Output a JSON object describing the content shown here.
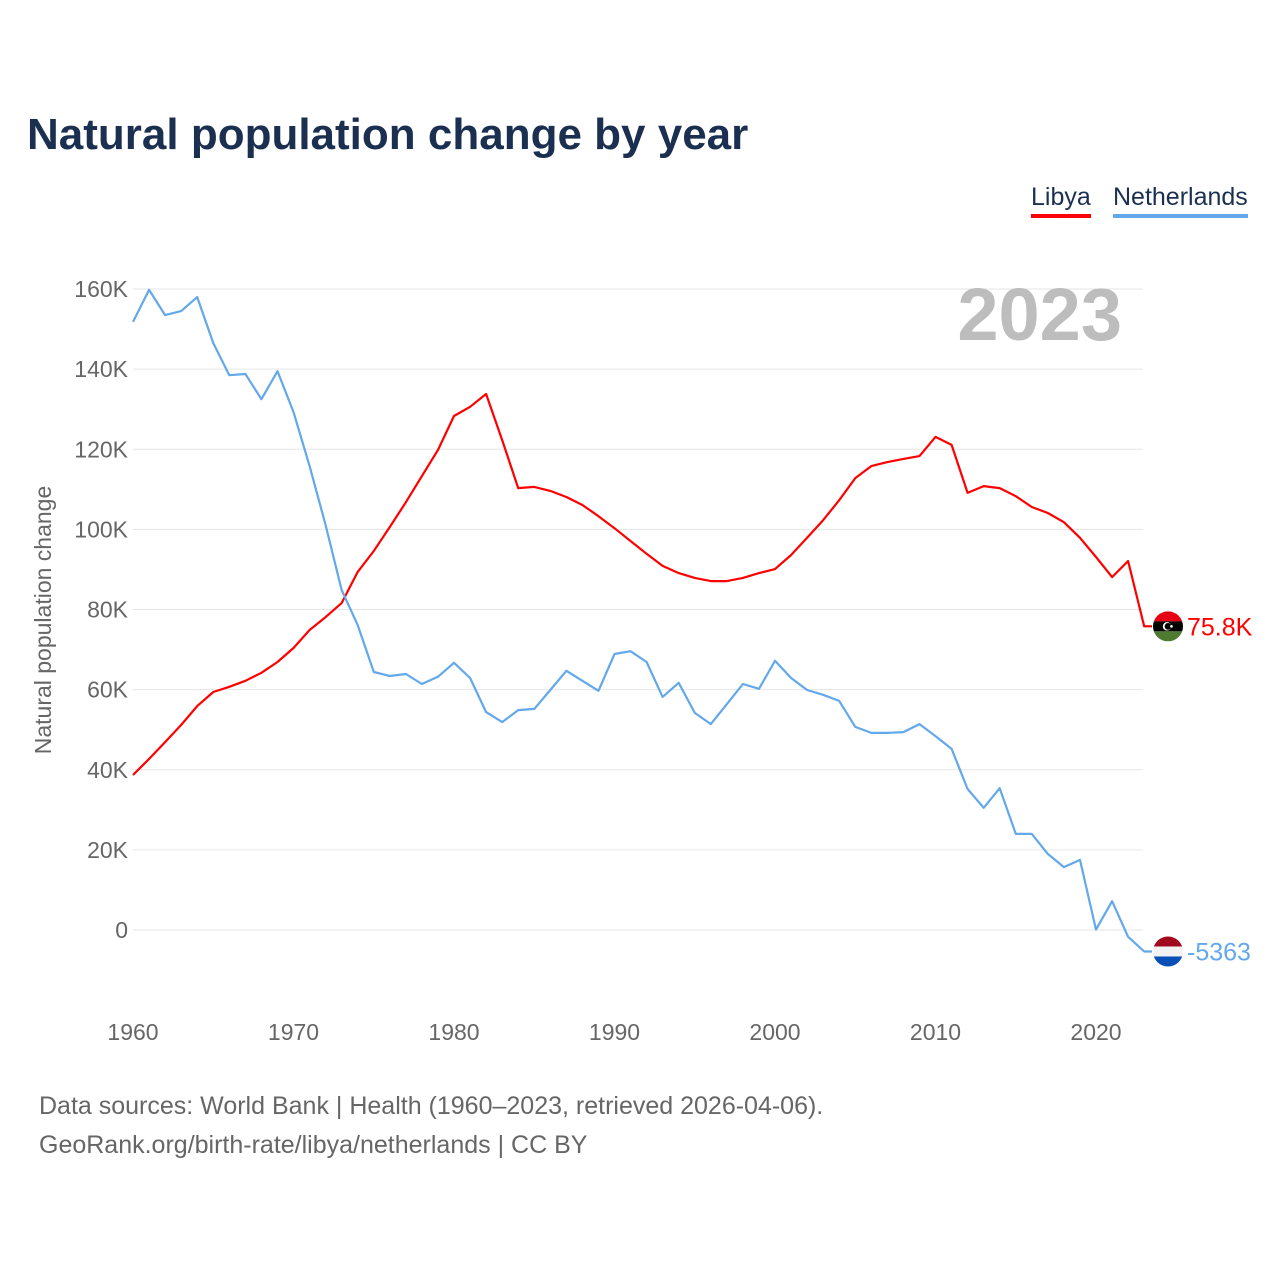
{
  "chart_data": {
    "type": "line",
    "title": "Natural population change by year",
    "ylabel": "Natural population change",
    "xlabel": "",
    "xlim": [
      1960,
      2023
    ],
    "ylim": [
      -15000,
      170000
    ],
    "grid": true,
    "legend_position": "top-right",
    "year_watermark": "2023",
    "x_ticks": [
      "1960",
      "1970",
      "1980",
      "1990",
      "2000",
      "2010",
      "2020"
    ],
    "y_ticks": [
      {
        "v": 0,
        "label": "0"
      },
      {
        "v": 20000,
        "label": "20K"
      },
      {
        "v": 40000,
        "label": "40K"
      },
      {
        "v": 60000,
        "label": "60K"
      },
      {
        "v": 80000,
        "label": "80K"
      },
      {
        "v": 100000,
        "label": "100K"
      },
      {
        "v": 120000,
        "label": "120K"
      },
      {
        "v": 140000,
        "label": "140K"
      },
      {
        "v": 160000,
        "label": "160K"
      }
    ],
    "x_start": 1960,
    "series": [
      {
        "name": "Libya",
        "color": "#ff0000",
        "end_label": "75.8K",
        "flag": "libya-flag",
        "values": [
          38.7,
          42.7,
          46.9,
          51.2,
          55.9,
          59.4,
          60.7,
          62.2,
          64.2,
          66.9,
          70.4,
          74.9,
          78.1,
          81.6,
          89.4,
          94.6,
          100.6,
          106.8,
          113.3,
          119.8,
          128.3,
          130.6,
          133.8,
          122.3,
          110.3,
          110.6,
          109.6,
          108.1,
          106.1,
          103.3,
          100.3,
          97.1,
          93.9,
          90.9,
          89.1,
          87.9,
          87.1,
          87.1,
          87.9,
          89.1,
          90.1,
          93.6,
          97.9,
          102.3,
          107.3,
          112.8,
          115.8,
          116.8,
          117.6,
          118.3,
          123.1,
          121.1,
          109.1,
          110.8,
          110.3,
          108.3,
          105.6,
          104.1,
          101.8,
          97.9,
          93.1,
          88.1,
          92.1,
          75.8
        ]
      },
      {
        "name": "Netherlands",
        "color": "#62a8ea",
        "end_label": "-5363",
        "flag": "netherlands-flag",
        "values": [
          151.8,
          159.8,
          153.5,
          154.5,
          158.0,
          146.5,
          138.5,
          138.8,
          132.5,
          139.5,
          129.3,
          115.8,
          101.1,
          84.9,
          76.1,
          64.4,
          63.4,
          63.9,
          61.4,
          63.2,
          66.7,
          62.9,
          54.4,
          51.9,
          54.9,
          55.2,
          59.9,
          64.7,
          62.2,
          59.7,
          68.9,
          69.6,
          66.9,
          58.2,
          61.7,
          54.2,
          51.4,
          56.4,
          61.4,
          60.2,
          67.2,
          62.9,
          59.9,
          58.7,
          57.2,
          50.7,
          49.2,
          49.2,
          49.4,
          51.4,
          48.4,
          45.2,
          35.2,
          30.5,
          35.4,
          24.0,
          24.0,
          19.0,
          15.7,
          17.5,
          0.1,
          7.2,
          -1.7,
          -5.363
        ]
      }
    ],
    "value_unit": "thousands"
  },
  "legend": [
    "Libya",
    "Netherlands"
  ],
  "footer": {
    "line1": "Data sources: World Bank | Health (1960–2023, retrieved 2026-04-06).",
    "line2": "GeoRank.org/birth-rate/libya/netherlands | CC BY"
  }
}
